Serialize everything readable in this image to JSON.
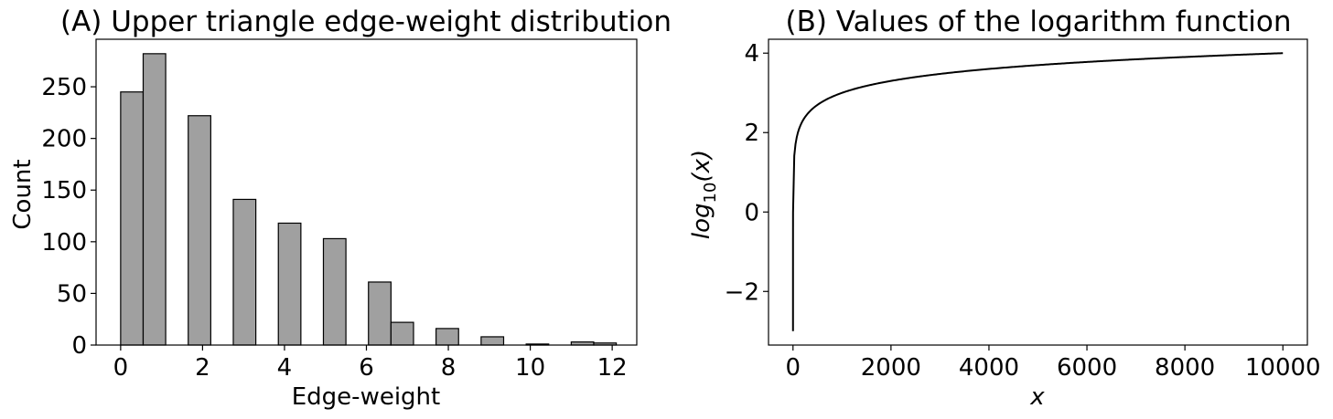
{
  "chart_data": [
    {
      "type": "bar",
      "title": "(A) Upper triangle edge-weight distribution",
      "xlabel": "Edge-weight",
      "ylabel": "Count",
      "xlim": [
        -0.6,
        12.6
      ],
      "ylim": [
        0,
        296
      ],
      "xticks": [
        0,
        2,
        4,
        6,
        8,
        10,
        12
      ],
      "yticks": [
        0,
        50,
        100,
        150,
        200,
        250
      ],
      "bin_width": 0.55,
      "bins": [
        {
          "x": 0.0,
          "count": 245
        },
        {
          "x": 0.55,
          "count": 282
        },
        {
          "x": 1.65,
          "count": 222
        },
        {
          "x": 2.75,
          "count": 141
        },
        {
          "x": 3.85,
          "count": 118
        },
        {
          "x": 4.95,
          "count": 103
        },
        {
          "x": 6.05,
          "count": 61
        },
        {
          "x": 6.6,
          "count": 22
        },
        {
          "x": 7.7,
          "count": 16
        },
        {
          "x": 8.8,
          "count": 8
        },
        {
          "x": 9.9,
          "count": 1
        },
        {
          "x": 11.0,
          "count": 3
        },
        {
          "x": 11.55,
          "count": 2
        }
      ],
      "bar_color": "#a0a0a0",
      "edge_color": "#000000",
      "grid": false
    },
    {
      "type": "line",
      "title": "(B) Values of the logarithm function",
      "xlabel": "x",
      "ylabel": "log",
      "ylabel_sub": "10",
      "ylabel_arg": "(x)",
      "function": "log10(x)",
      "x_range": [
        0.001,
        10000
      ],
      "xlim": [
        -500,
        10500
      ],
      "ylim": [
        -3.35,
        4.35
      ],
      "xticks": [
        0,
        2000,
        4000,
        6000,
        8000,
        10000
      ],
      "yticks": [
        -2,
        0,
        2,
        4
      ],
      "ytick_labels": [
        "−2",
        "0",
        "2",
        "4"
      ],
      "line_color": "#000000",
      "grid": false
    }
  ]
}
